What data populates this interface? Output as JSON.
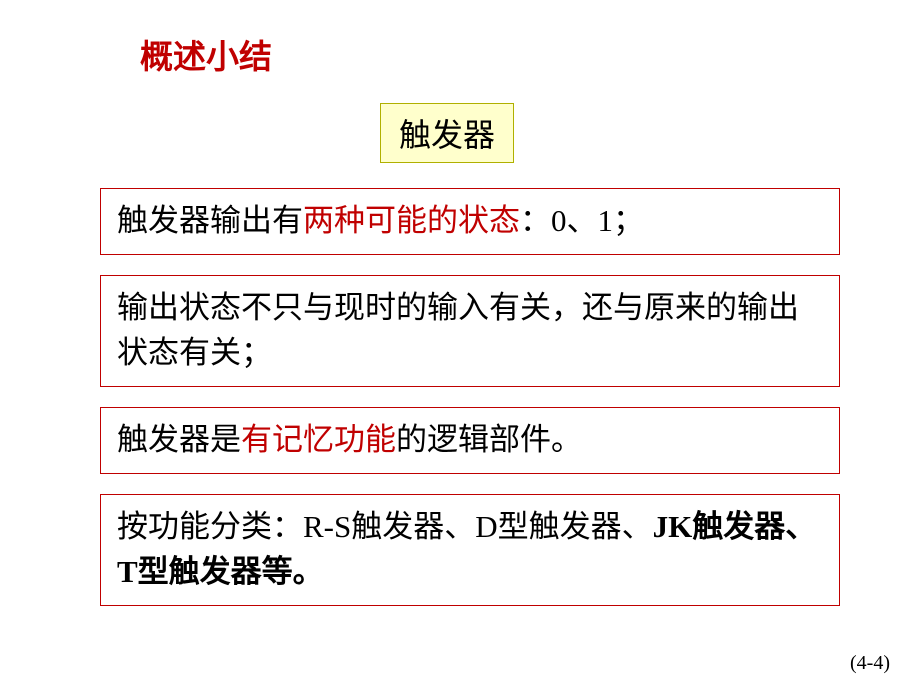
{
  "title": "概述小结",
  "header_box": "触发器",
  "box1": {
    "part1": "触发器输出有",
    "highlight": "两种可能的状态",
    "part2": "：0、1；"
  },
  "box2": {
    "text": "输出状态不只与现时的输入有关，还与原来的输出状态有关；"
  },
  "box3": {
    "part1": "触发器是",
    "highlight": "有记忆功能",
    "part2": "的逻辑部件。"
  },
  "box4": {
    "part1": "按功能分类：R-S触发器、D型触发器、",
    "bold": "JK触发器、T型触发器等。"
  },
  "page_number": "(4-4)",
  "colors": {
    "title_color": "#c00000",
    "box_border": "#c00000",
    "header_bg": "#ffffcc",
    "header_border": "#b0b000",
    "text_color": "#000000",
    "highlight_color": "#c00000",
    "background": "#ffffff"
  },
  "fonts": {
    "title_size": 33,
    "header_size": 32,
    "content_size": 31,
    "page_number_size": 20
  }
}
